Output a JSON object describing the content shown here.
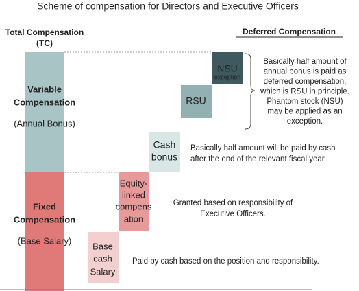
{
  "title": "Scheme of compensation for Directors and Executive Officers",
  "total_compensation": [
    "Total Compensation",
    "(TC)"
  ],
  "deferred_compensation": "Deferred Compensation",
  "variable": {
    "name": [
      "Variable",
      "Compensation"
    ],
    "note": "(Annual Bonus)"
  },
  "fixed": {
    "name": [
      "Fixed",
      "Compensation"
    ],
    "note": "(Base Salary)"
  },
  "boxes": [
    {
      "lines": [
        "NSU",
        "exception"
      ]
    },
    {
      "lines": [
        "RSU"
      ]
    },
    {
      "lines": [
        "Cash",
        "bonus"
      ]
    },
    {
      "lines": [
        "Equity-",
        "linked",
        "compens",
        "ation"
      ]
    },
    {
      "lines": [
        "Base",
        "cash",
        "Salary"
      ]
    }
  ],
  "descriptions": [
    [
      "Basically half amount of",
      "annual bonus is paid as",
      "deferred compensation,",
      "which is RSU in principle.",
      "Phantom stock (NSU)",
      "may be applied as an",
      "exception."
    ],
    [
      "Basically half amount will be paid by cash",
      "after the end of the relevant fiscal year."
    ],
    [
      "Granted based on responsibility of",
      "Executive Officers."
    ],
    [
      "Paid by cash based on the position and responsibility."
    ]
  ]
}
